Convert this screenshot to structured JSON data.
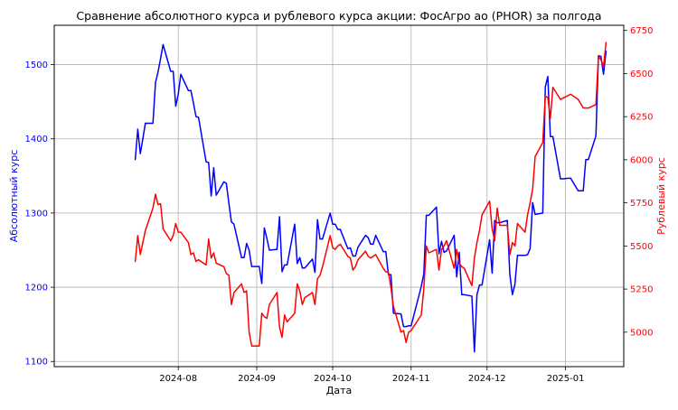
{
  "chart_data": {
    "type": "line",
    "title": "Сравнение абсолютного курса и рублевого курса акции: ФосАгро ао (PHOR) за полгода",
    "xlabel": "Дата",
    "x_ticks": [
      "2024-08",
      "2024-09",
      "2024-10",
      "2024-11",
      "2024-12",
      "2025-01"
    ],
    "x_range": [
      "2024-06-13",
      "2025-01-24"
    ],
    "grid": true,
    "left_axis": {
      "label": "Абсолютный курс",
      "color": "#0000ff",
      "ylim": [
        1093,
        1553
      ],
      "ticks": [
        1100,
        1200,
        1300,
        1400,
        1500
      ]
    },
    "right_axis": {
      "label": "Рублевый курс",
      "color": "#ff0000",
      "ylim": [
        4800,
        6780
      ],
      "ticks": [
        5000,
        5250,
        5500,
        5750,
        6000,
        6250,
        6500,
        6750
      ]
    },
    "series": [
      {
        "axis": "left",
        "color": "#0000ff",
        "x": [
          "2024-07-15",
          "2024-07-16",
          "2024-07-17",
          "2024-07-18",
          "2024-07-19",
          "2024-07-22",
          "2024-07-23",
          "2024-07-24",
          "2024-07-25",
          "2024-07-26",
          "2024-07-29",
          "2024-07-30",
          "2024-07-31",
          "2024-08-01",
          "2024-08-02",
          "2024-08-05",
          "2024-08-06",
          "2024-08-07",
          "2024-08-08",
          "2024-08-09",
          "2024-08-12",
          "2024-08-13",
          "2024-08-14",
          "2024-08-15",
          "2024-08-16",
          "2024-08-19",
          "2024-08-20",
          "2024-08-21",
          "2024-08-22",
          "2024-08-23",
          "2024-08-26",
          "2024-08-27",
          "2024-08-28",
          "2024-08-29",
          "2024-08-30",
          "2024-09-02",
          "2024-09-03",
          "2024-09-04",
          "2024-09-05",
          "2024-09-06",
          "2024-09-09",
          "2024-09-10",
          "2024-09-11",
          "2024-09-12",
          "2024-09-13",
          "2024-09-16",
          "2024-09-17",
          "2024-09-18",
          "2024-09-19",
          "2024-09-20",
          "2024-09-23",
          "2024-09-24",
          "2024-09-25",
          "2024-09-26",
          "2024-09-27",
          "2024-09-30",
          "2024-10-01",
          "2024-10-02",
          "2024-10-03",
          "2024-10-04",
          "2024-10-07",
          "2024-10-08",
          "2024-10-09",
          "2024-10-10",
          "2024-10-11",
          "2024-10-14",
          "2024-10-15",
          "2024-10-16",
          "2024-10-17",
          "2024-10-18",
          "2024-10-21",
          "2024-10-22",
          "2024-10-23",
          "2024-10-24",
          "2024-10-25",
          "2024-10-28",
          "2024-10-29",
          "2024-10-30",
          "2024-10-31",
          "2024-11-01",
          "2024-11-05",
          "2024-11-06",
          "2024-11-07",
          "2024-11-08",
          "2024-11-11",
          "2024-11-12",
          "2024-11-13",
          "2024-11-14",
          "2024-11-15",
          "2024-11-18",
          "2024-11-19",
          "2024-11-20",
          "2024-11-21",
          "2024-11-22",
          "2024-11-25",
          "2024-11-26",
          "2024-11-27",
          "2024-11-28",
          "2024-11-29",
          "2024-12-02",
          "2024-12-03",
          "2024-12-04",
          "2024-12-05",
          "2024-12-06",
          "2024-12-09",
          "2024-12-10",
          "2024-12-11",
          "2024-12-12",
          "2024-12-13",
          "2024-12-16",
          "2024-12-17",
          "2024-12-18",
          "2024-12-19",
          "2024-12-20",
          "2024-12-23",
          "2024-12-24",
          "2024-12-25",
          "2024-12-26",
          "2024-12-27",
          "2024-12-30",
          "2025-01-03",
          "2025-01-06",
          "2025-01-08",
          "2025-01-09",
          "2025-01-10",
          "2025-01-13",
          "2025-01-14",
          "2025-01-15",
          "2025-01-16",
          "2025-01-17"
        ],
        "values": [
          1372,
          1413,
          1380,
          1400,
          1421,
          1421,
          1476,
          1490,
          1508,
          1527,
          1491,
          1491,
          1444,
          1460,
          1487,
          1465,
          1465,
          1448,
          1430,
          1429,
          1369,
          1368,
          1323,
          1361,
          1324,
          1342,
          1340,
          1313,
          1288,
          1285,
          1240,
          1240,
          1259,
          1250,
          1228,
          1228,
          1205,
          1280,
          1266,
          1250,
          1251,
          1295,
          1221,
          1230,
          1230,
          1285,
          1232,
          1240,
          1226,
          1226,
          1238,
          1220,
          1291,
          1265,
          1265,
          1300,
          1285,
          1285,
          1278,
          1278,
          1252,
          1253,
          1242,
          1242,
          1254,
          1270,
          1267,
          1258,
          1258,
          1270,
          1248,
          1248,
          1217,
          1217,
          1165,
          1164,
          1147,
          1147,
          1148,
          1148,
          1201,
          1218,
          1297,
          1297,
          1308,
          1245,
          1262,
          1247,
          1249,
          1270,
          1214,
          1247,
          1190,
          1190,
          1188,
          1113,
          1190,
          1203,
          1203,
          1264,
          1219,
          1290,
          1287,
          1287,
          1290,
          1217,
          1190,
          1204,
          1243,
          1243,
          1244,
          1252,
          1314,
          1298,
          1300,
          1470,
          1484,
          1403,
          1403,
          1346,
          1347,
          1330,
          1330,
          1372,
          1372,
          1404,
          1512,
          1511,
          1487,
          1518
        ]
      },
      {
        "axis": "right",
        "color": "#ff0000",
        "x": [
          "2024-07-15",
          "2024-07-16",
          "2024-07-17",
          "2024-07-18",
          "2024-07-19",
          "2024-07-22",
          "2024-07-23",
          "2024-07-24",
          "2024-07-25",
          "2024-07-26",
          "2024-07-29",
          "2024-07-30",
          "2024-07-31",
          "2024-08-01",
          "2024-08-02",
          "2024-08-05",
          "2024-08-06",
          "2024-08-07",
          "2024-08-08",
          "2024-08-09",
          "2024-08-12",
          "2024-08-13",
          "2024-08-14",
          "2024-08-15",
          "2024-08-16",
          "2024-08-19",
          "2024-08-20",
          "2024-08-21",
          "2024-08-22",
          "2024-08-23",
          "2024-08-26",
          "2024-08-27",
          "2024-08-28",
          "2024-08-29",
          "2024-08-30",
          "2024-09-02",
          "2024-09-03",
          "2024-09-04",
          "2024-09-05",
          "2024-09-06",
          "2024-09-09",
          "2024-09-10",
          "2024-09-11",
          "2024-09-12",
          "2024-09-13",
          "2024-09-16",
          "2024-09-17",
          "2024-09-18",
          "2024-09-19",
          "2024-09-20",
          "2024-09-23",
          "2024-09-24",
          "2024-09-25",
          "2024-09-26",
          "2024-09-27",
          "2024-09-30",
          "2024-10-01",
          "2024-10-02",
          "2024-10-03",
          "2024-10-04",
          "2024-10-07",
          "2024-10-08",
          "2024-10-09",
          "2024-10-10",
          "2024-10-11",
          "2024-10-14",
          "2024-10-15",
          "2024-10-16",
          "2024-10-17",
          "2024-10-18",
          "2024-10-21",
          "2024-10-22",
          "2024-10-23",
          "2024-10-24",
          "2024-10-25",
          "2024-10-28",
          "2024-10-29",
          "2024-10-30",
          "2024-10-31",
          "2024-11-01",
          "2024-11-05",
          "2024-11-06",
          "2024-11-07",
          "2024-11-08",
          "2024-11-11",
          "2024-11-12",
          "2024-11-13",
          "2024-11-14",
          "2024-11-15",
          "2024-11-18",
          "2024-11-19",
          "2024-11-20",
          "2024-11-21",
          "2024-11-22",
          "2024-11-25",
          "2024-11-26",
          "2024-11-27",
          "2024-11-28",
          "2024-11-29",
          "2024-12-02",
          "2024-12-03",
          "2024-12-04",
          "2024-12-05",
          "2024-12-06",
          "2024-12-09",
          "2024-12-10",
          "2024-12-11",
          "2024-12-12",
          "2024-12-13",
          "2024-12-16",
          "2024-12-17",
          "2024-12-18",
          "2024-12-19",
          "2024-12-20",
          "2024-12-23",
          "2024-12-24",
          "2024-12-25",
          "2024-12-26",
          "2024-12-27",
          "2024-12-30",
          "2025-01-03",
          "2025-01-06",
          "2025-01-08",
          "2025-01-09",
          "2025-01-10",
          "2025-01-13",
          "2025-01-14",
          "2025-01-15",
          "2025-01-16",
          "2025-01-17"
        ],
        "values": [
          5410,
          5560,
          5450,
          5520,
          5590,
          5720,
          5800,
          5740,
          5745,
          5600,
          5530,
          5560,
          5630,
          5580,
          5580,
          5520,
          5450,
          5460,
          5410,
          5420,
          5390,
          5540,
          5430,
          5460,
          5400,
          5380,
          5340,
          5330,
          5160,
          5230,
          5280,
          5230,
          5240,
          5000,
          4920,
          4920,
          5110,
          5090,
          5080,
          5160,
          5230,
          5030,
          4970,
          5100,
          5060,
          5110,
          5280,
          5240,
          5160,
          5200,
          5230,
          5160,
          5310,
          5330,
          5380,
          5560,
          5490,
          5480,
          5500,
          5510,
          5440,
          5430,
          5360,
          5380,
          5420,
          5470,
          5440,
          5430,
          5440,
          5450,
          5370,
          5350,
          5350,
          5260,
          5150,
          5000,
          5010,
          4940,
          5000,
          5010,
          5100,
          5250,
          5500,
          5460,
          5480,
          5360,
          5480,
          5500,
          5530,
          5370,
          5480,
          5400,
          5380,
          5370,
          5270,
          5430,
          5520,
          5590,
          5680,
          5760,
          5600,
          5530,
          5720,
          5620,
          5620,
          5450,
          5520,
          5500,
          5630,
          5580,
          5680,
          5750,
          5830,
          6020,
          6100,
          6370,
          6360,
          6240,
          6420,
          6350,
          6380,
          6350,
          6300,
          6300,
          6300,
          6320,
          6600,
          6580,
          6540,
          6680
        ]
      }
    ]
  }
}
